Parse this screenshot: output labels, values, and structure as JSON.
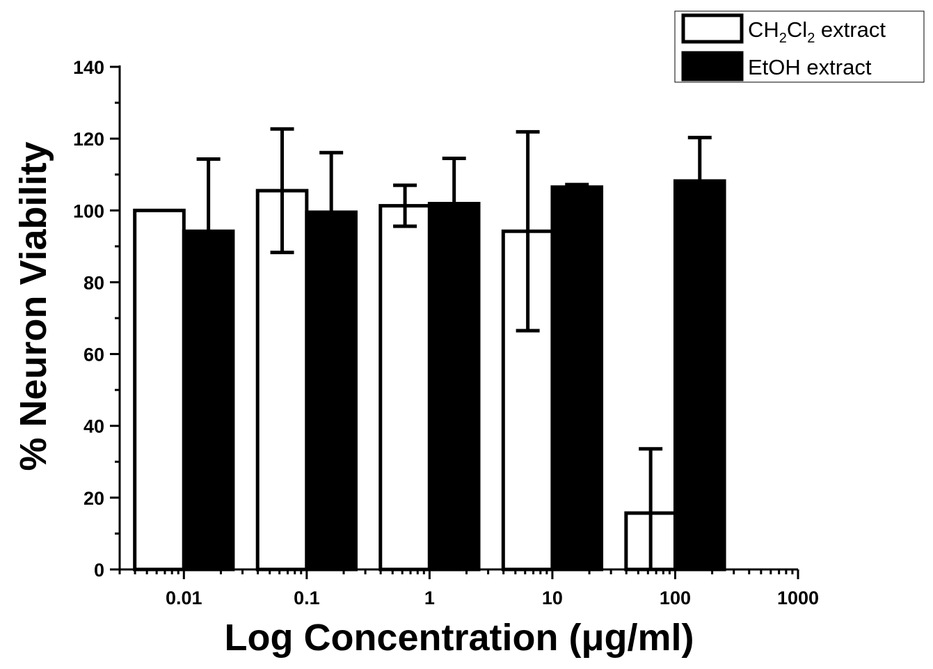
{
  "chart_data": {
    "type": "bar",
    "title": "",
    "xlabel": "Log Concentration (μg/ml)",
    "ylabel": "% Neuron Viability",
    "x_scale": "log",
    "xlim": [
      0.003,
      1000
    ],
    "ylim": [
      0,
      140
    ],
    "categories": [
      "0.01",
      "0.1",
      "1",
      "10",
      "100"
    ],
    "x_ticks": [
      "0.01",
      "0.1",
      "1",
      "10",
      "100",
      "1000"
    ],
    "y_ticks": [
      "0",
      "20",
      "40",
      "60",
      "80",
      "100",
      "120",
      "140"
    ],
    "series": [
      {
        "name": "CH2Cl2 extract",
        "legend_main": "CH",
        "legend_sub1": "2",
        "legend_mid": "Cl",
        "legend_sub2": "2",
        "legend_tail": " extract",
        "fill": "#ffffff",
        "values": [
          100,
          105.5,
          101.3,
          94.2,
          15.7
        ],
        "errors": [
          0,
          17.2,
          5.7,
          27.7,
          17.9
        ]
      },
      {
        "name": "EtOH extract",
        "fill": "#000000",
        "values": [
          94.2,
          99.5,
          101.9,
          106.5,
          108.2
        ],
        "errors": [
          20.1,
          16.6,
          12.6,
          0.7,
          12.1
        ]
      }
    ],
    "grid": false,
    "legend_position": "top-right"
  },
  "colors": {
    "ink": "#000000",
    "background": "#ffffff"
  }
}
